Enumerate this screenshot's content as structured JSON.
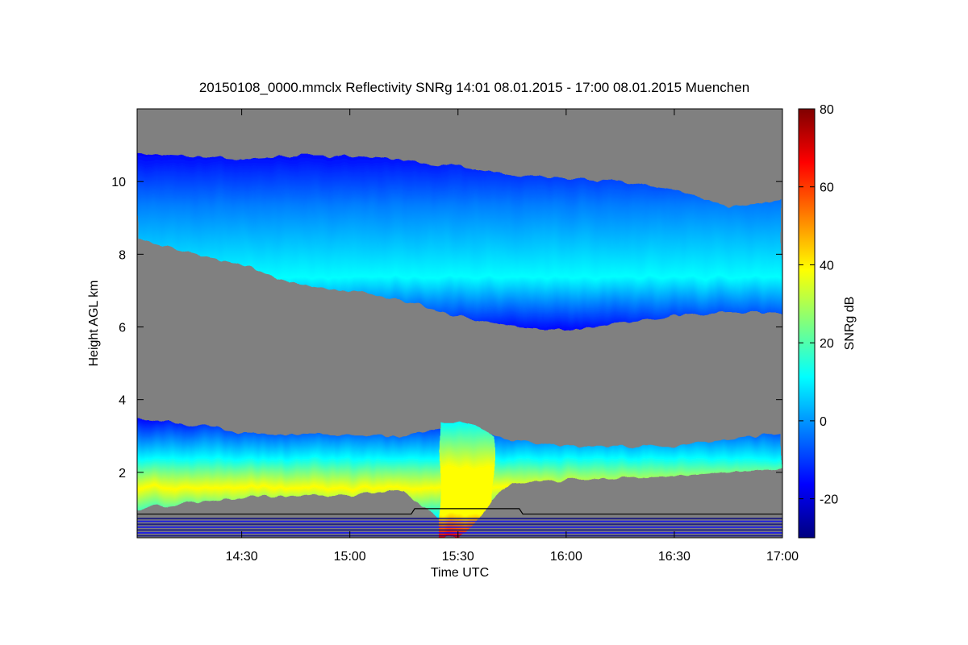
{
  "chart_data": {
    "type": "heatmap",
    "title": "20150108_0000.mmclx Reflectivity SNRg   14:01 08.01.2015 - 17:00 08.01.2015 Muenchen",
    "xlabel": "Time UTC",
    "ylabel": "Height AGL km",
    "colorbar_label": "SNRg dB",
    "x_range": [
      "14:01",
      "17:00"
    ],
    "x_ticks": [
      "14:30",
      "15:00",
      "15:30",
      "16:00",
      "16:30",
      "17:00"
    ],
    "y_range": [
      0.2,
      12.0
    ],
    "y_ticks": [
      2,
      4,
      6,
      8,
      10
    ],
    "color_range": [
      -30,
      80
    ],
    "color_ticks": [
      -20,
      0,
      20,
      40,
      60,
      80
    ],
    "no_signal_color": "#808080",
    "colormap": [
      "#00007f",
      "#0000ff",
      "#007fff",
      "#00ffff",
      "#7fff7f",
      "#ffff00",
      "#ff7f00",
      "#ff0000",
      "#7f0000"
    ],
    "layers": [
      {
        "name": "upper cloud",
        "time": [
          "14:01",
          "14:30",
          "14:45",
          "15:00",
          "15:15",
          "15:30",
          "15:45",
          "16:00",
          "16:15",
          "16:30",
          "16:45",
          "17:00"
        ],
        "top_km": [
          10.8,
          10.6,
          10.7,
          10.7,
          10.6,
          10.4,
          10.2,
          10.1,
          10.0,
          9.8,
          9.3,
          9.5
        ],
        "base_km": [
          8.4,
          7.7,
          7.2,
          7.0,
          6.7,
          6.3,
          6.0,
          5.9,
          6.1,
          6.3,
          6.4,
          6.4
        ],
        "peak_snr_db": 10
      },
      {
        "name": "lower cloud",
        "time": [
          "14:01",
          "14:30",
          "15:00",
          "15:15",
          "15:30",
          "15:45",
          "16:00",
          "16:30",
          "16:45",
          "17:00"
        ],
        "top_km": [
          3.5,
          3.1,
          3.0,
          3.0,
          3.3,
          2.9,
          2.7,
          2.7,
          2.9,
          3.1
        ],
        "base_km": [
          1.0,
          1.3,
          1.4,
          1.5,
          0.3,
          1.7,
          1.8,
          1.9,
          2.0,
          2.1
        ],
        "peak_snr_db": 38
      },
      {
        "name": "precipitation shaft",
        "time": [
          "15:25",
          "15:30",
          "15:35",
          "15:40"
        ],
        "top_km": [
          3.4,
          3.4,
          3.3,
          3.0
        ],
        "base_km": [
          0.2,
          0.2,
          0.6,
          1.2
        ],
        "peak_snr_db": 45
      }
    ],
    "reference_line": {
      "time": [
        "14:01",
        "15:17",
        "15:18",
        "15:47",
        "15:48",
        "17:00"
      ],
      "height_km": [
        0.85,
        0.85,
        1.0,
        1.0,
        0.85,
        0.85
      ]
    },
    "grid": false,
    "legend": "colorbar-right"
  }
}
